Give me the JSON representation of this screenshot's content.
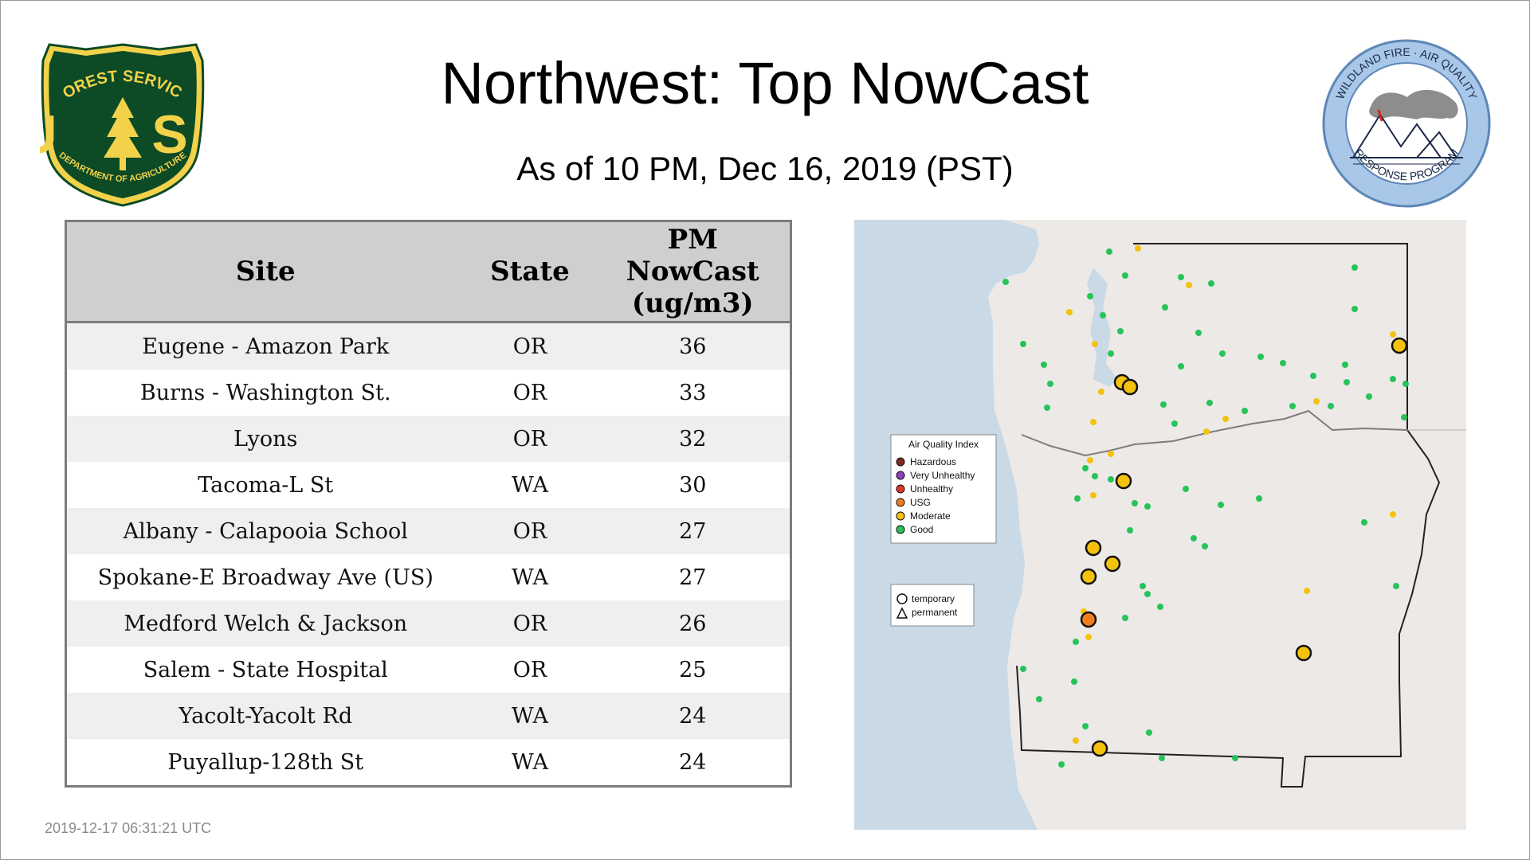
{
  "header": {
    "title": "Northwest: Top NowCast",
    "subtitle": "As of 10 PM, Dec 16, 2019 (PST)"
  },
  "logos": {
    "usfs": {
      "top_text": "FOREST SERVICE",
      "letters": "U S",
      "bottom_text": "DEPARTMENT OF AGRICULTURE"
    },
    "wfaq": {
      "top_text": "WILDLAND FIRE · AIR QUALITY",
      "bottom_text": "RESPONSE PROGRAM"
    }
  },
  "table": {
    "headers": {
      "site": "Site",
      "state": "State",
      "pm": [
        "PM",
        "NowCast",
        "(ug/m3)"
      ]
    },
    "rows": [
      {
        "site": "Eugene - Amazon Park",
        "state": "OR",
        "value": "36"
      },
      {
        "site": "Burns - Washington St.",
        "state": "OR",
        "value": "33"
      },
      {
        "site": "Lyons",
        "state": "OR",
        "value": "32"
      },
      {
        "site": "Tacoma-L St",
        "state": "WA",
        "value": "30"
      },
      {
        "site": "Albany - Calapooia School",
        "state": "OR",
        "value": "27"
      },
      {
        "site": "Spokane-E Broadway Ave (US)",
        "state": "WA",
        "value": "27"
      },
      {
        "site": "Medford Welch & Jackson",
        "state": "OR",
        "value": "26"
      },
      {
        "site": "Salem - State Hospital",
        "state": "OR",
        "value": "25"
      },
      {
        "site": "Yacolt-Yacolt Rd",
        "state": "WA",
        "value": "24"
      },
      {
        "site": "Puyallup-128th St",
        "state": "WA",
        "value": "24"
      }
    ]
  },
  "map": {
    "legend_title": "Air Quality Index",
    "legend_items": [
      {
        "label": "Hazardous",
        "color": "#7e2a1e"
      },
      {
        "label": "Very Unhealthy",
        "color": "#8f3fb8"
      },
      {
        "label": "Unhealthy",
        "color": "#e8322b"
      },
      {
        "label": "USG",
        "color": "#f07c1e"
      },
      {
        "label": "Moderate",
        "color": "#f4c20d"
      },
      {
        "label": "Good",
        "color": "#27c35a"
      }
    ],
    "shape_legend": [
      {
        "label": "temporary",
        "shape": "circle"
      },
      {
        "label": "permanent",
        "shape": "triangle"
      }
    ]
  },
  "footer": {
    "timestamp": "2019-12-17 06:31:21 UTC"
  },
  "colors": {
    "usfs_green": "#0d4a26",
    "usfs_yellow": "#f2d24a",
    "water": "#c9d9e6",
    "land": "#ece9e7",
    "table_header_bg": "#cfcfcf"
  }
}
